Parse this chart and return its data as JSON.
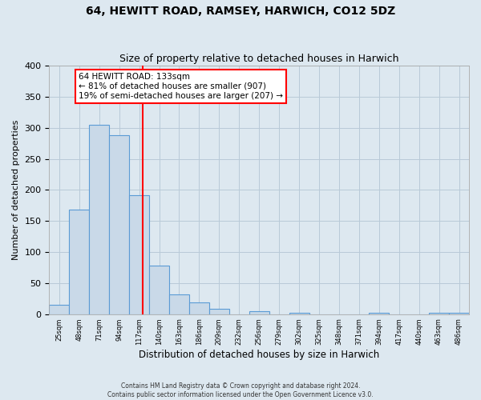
{
  "title": "64, HEWITT ROAD, RAMSEY, HARWICH, CO12 5DZ",
  "subtitle": "Size of property relative to detached houses in Harwich",
  "xlabel": "Distribution of detached houses by size in Harwich",
  "ylabel": "Number of detached properties",
  "bin_labels": [
    "25sqm",
    "48sqm",
    "71sqm",
    "94sqm",
    "117sqm",
    "140sqm",
    "163sqm",
    "186sqm",
    "209sqm",
    "232sqm",
    "256sqm",
    "279sqm",
    "302sqm",
    "325sqm",
    "348sqm",
    "371sqm",
    "394sqm",
    "417sqm",
    "440sqm",
    "463sqm",
    "486sqm"
  ],
  "bar_heights": [
    15,
    168,
    305,
    288,
    191,
    78,
    32,
    19,
    9,
    0,
    5,
    0,
    2,
    0,
    0,
    0,
    2,
    0,
    0,
    2,
    2
  ],
  "bar_color": "#c9d9e8",
  "bar_edge_color": "#5b9bd5",
  "vline_color": "red",
  "annotation_text": "64 HEWITT ROAD: 133sqm\n← 81% of detached houses are smaller (907)\n19% of semi-detached houses are larger (207) →",
  "annotation_box_color": "white",
  "annotation_box_edge_color": "red",
  "ylim": [
    0,
    400
  ],
  "yticks": [
    0,
    50,
    100,
    150,
    200,
    250,
    300,
    350,
    400
  ],
  "footer_line1": "Contains HM Land Registry data © Crown copyright and database right 2024.",
  "footer_line2": "Contains public sector information licensed under the Open Government Licence v3.0.",
  "bg_color": "#dde8f0",
  "plot_bg_color": "#dde8f0",
  "grid_color": "#b8cad8"
}
